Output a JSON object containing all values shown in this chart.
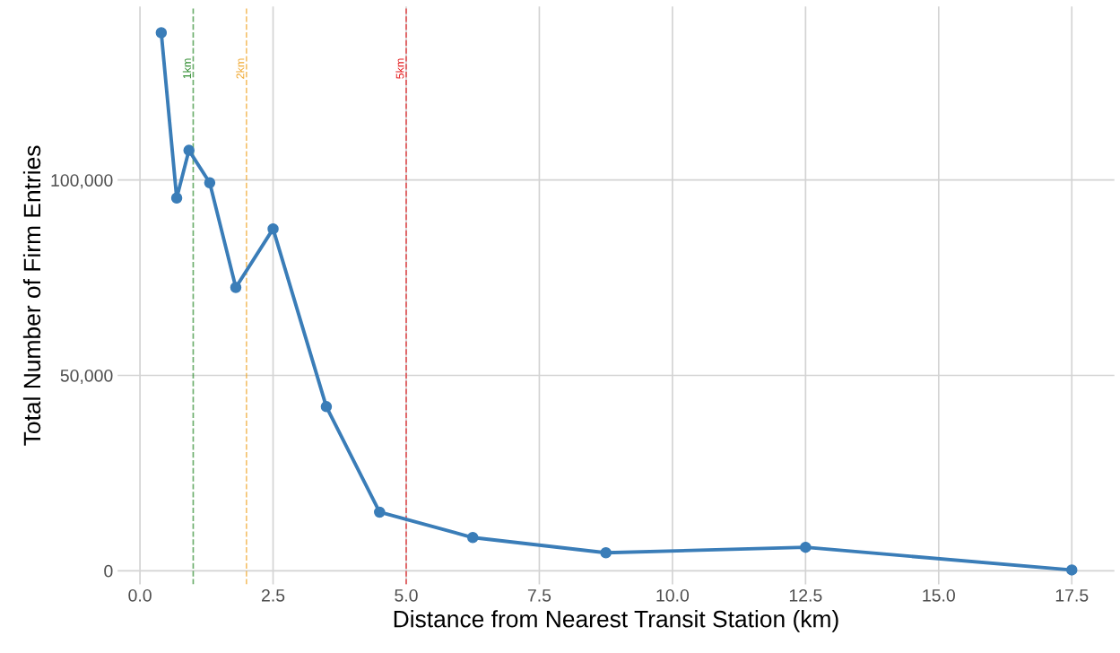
{
  "chart_data": {
    "type": "line",
    "xlabel": "Distance from Nearest Transit Station (km)",
    "ylabel": "Total Number of Firm Entries",
    "x": [
      0.4,
      0.69,
      0.92,
      1.31,
      1.8,
      2.5,
      3.5,
      4.5,
      6.25,
      8.75,
      12.5,
      17.5
    ],
    "series": [
      {
        "color": "#3a7db8",
        "values": [
          137700,
          95400,
          107600,
          99300,
          72500,
          87500,
          42000,
          15000,
          8500,
          4600,
          6000,
          200
        ]
      }
    ],
    "marker": "circle",
    "line_style": "solid",
    "grid": true,
    "xlim": [
      -0.42,
      18.3
    ],
    "ylim": [
      -3500,
      144400
    ],
    "xticks": [
      {
        "value": 0,
        "label": "0.0"
      },
      {
        "value": 2.5,
        "label": "2.5"
      },
      {
        "value": 5,
        "label": "5.0"
      },
      {
        "value": 7.5,
        "label": "7.5"
      },
      {
        "value": 10,
        "label": "10.0"
      },
      {
        "value": 12.5,
        "label": "12.5"
      },
      {
        "value": 15,
        "label": "15.0"
      },
      {
        "value": 17.5,
        "label": "17.5"
      }
    ],
    "yticks": [
      {
        "value": 0,
        "label": "0"
      },
      {
        "value": 50000,
        "label": "50,000"
      },
      {
        "value": 100000,
        "label": "100,000"
      }
    ],
    "ref_lines": [
      {
        "axis": "x",
        "value": 1,
        "label": "1km",
        "color": "#2e8b2e",
        "line_style": "dashed"
      },
      {
        "axis": "x",
        "value": 2,
        "label": "2km",
        "color": "#f0a830",
        "line_style": "dashed"
      },
      {
        "axis": "x",
        "value": 5,
        "label": "5km",
        "color": "#e41a1c",
        "line_style": "dashed"
      }
    ]
  }
}
